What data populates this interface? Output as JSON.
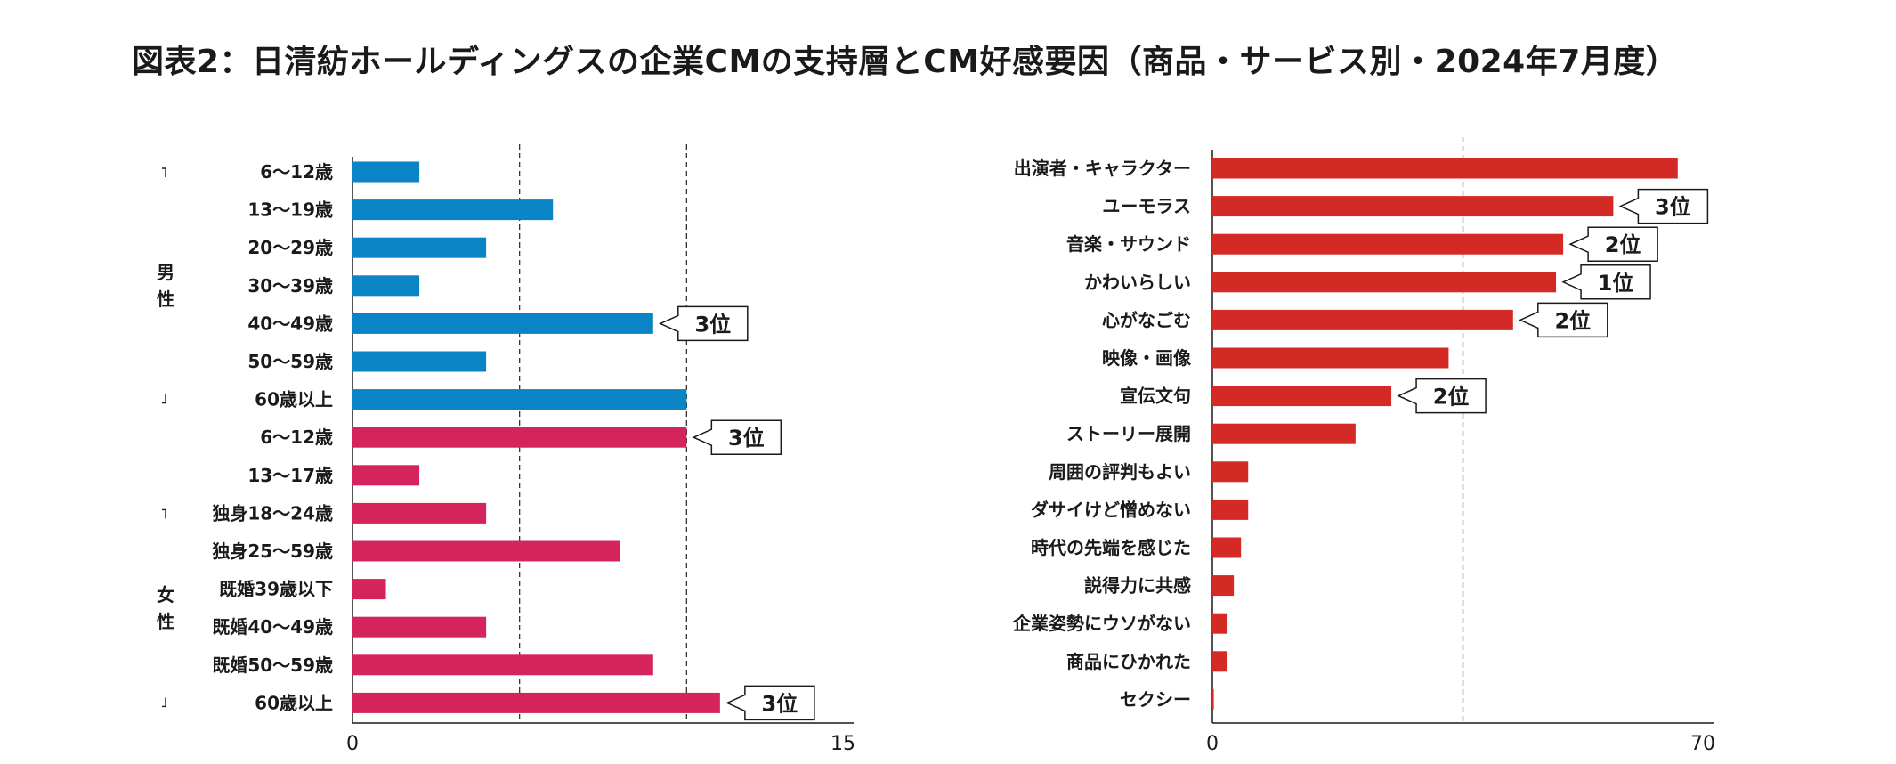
{
  "title": "図表2：日清紡ホールディングスの企業CMの支持層とCM好感要因（商品・サービス別・2024年7月度）",
  "colors": {
    "male": "#0b84c6",
    "female": "#d4245b",
    "factors": "#d42a26"
  },
  "chart_data": [
    {
      "type": "bar",
      "orientation": "horizontal",
      "xlim": [
        0,
        15
      ],
      "x_tick_labels": [
        "0",
        "15"
      ],
      "reference_lines": [
        5,
        10
      ],
      "groups": [
        {
          "label": [
            "男",
            "性"
          ],
          "start": 0,
          "end": 6
        },
        {
          "label": [
            "女",
            "性"
          ],
          "start": 9,
          "end": 14
        }
      ],
      "categories": [
        "6〜12歳",
        "13〜19歳",
        "20〜29歳",
        "30〜39歳",
        "40〜49歳",
        "50〜59歳",
        "60歳以上",
        "6〜12歳",
        "13〜17歳",
        "独身18〜24歳",
        "独身25〜59歳",
        "既婚39歳以下",
        "既婚40〜49歳",
        "既婚50〜59歳",
        "60歳以上"
      ],
      "values": [
        2,
        6,
        4,
        2,
        9,
        4,
        10,
        10,
        2,
        4,
        8,
        1,
        4,
        9,
        11
      ],
      "series_group": [
        "male",
        "male",
        "male",
        "male",
        "male",
        "male",
        "male",
        "female",
        "female",
        "female",
        "female",
        "female",
        "female",
        "female",
        "female"
      ],
      "rank_labels": [
        "",
        "",
        "",
        "",
        "3位",
        "",
        "",
        "3位",
        "",
        "",
        "",
        "",
        "",
        "",
        "3位"
      ]
    },
    {
      "type": "bar",
      "orientation": "horizontal",
      "xlim": [
        0,
        70
      ],
      "x_tick_labels": [
        "0",
        "70"
      ],
      "reference_lines": [
        35
      ],
      "categories": [
        "出演者・キャラクター",
        "ユーモラス",
        "音楽・サウンド",
        "かわいらしい",
        "心がなごむ",
        "映像・画像",
        "宣伝文句",
        "ストーリー展開",
        "周囲の評判もよい",
        "ダサイけど憎めない",
        "時代の先端を感じた",
        "説得力に共感",
        "企業姿勢にウソがない",
        "商品にひかれた",
        "セクシー"
      ],
      "values": [
        65,
        56,
        49,
        48,
        42,
        33,
        25,
        20,
        5,
        5,
        4,
        3,
        2,
        2,
        0.2
      ],
      "rank_labels": [
        "",
        "3位",
        "2位",
        "1位",
        "2位",
        "",
        "2位",
        "",
        "",
        "",
        "",
        "",
        "",
        "",
        ""
      ]
    }
  ]
}
